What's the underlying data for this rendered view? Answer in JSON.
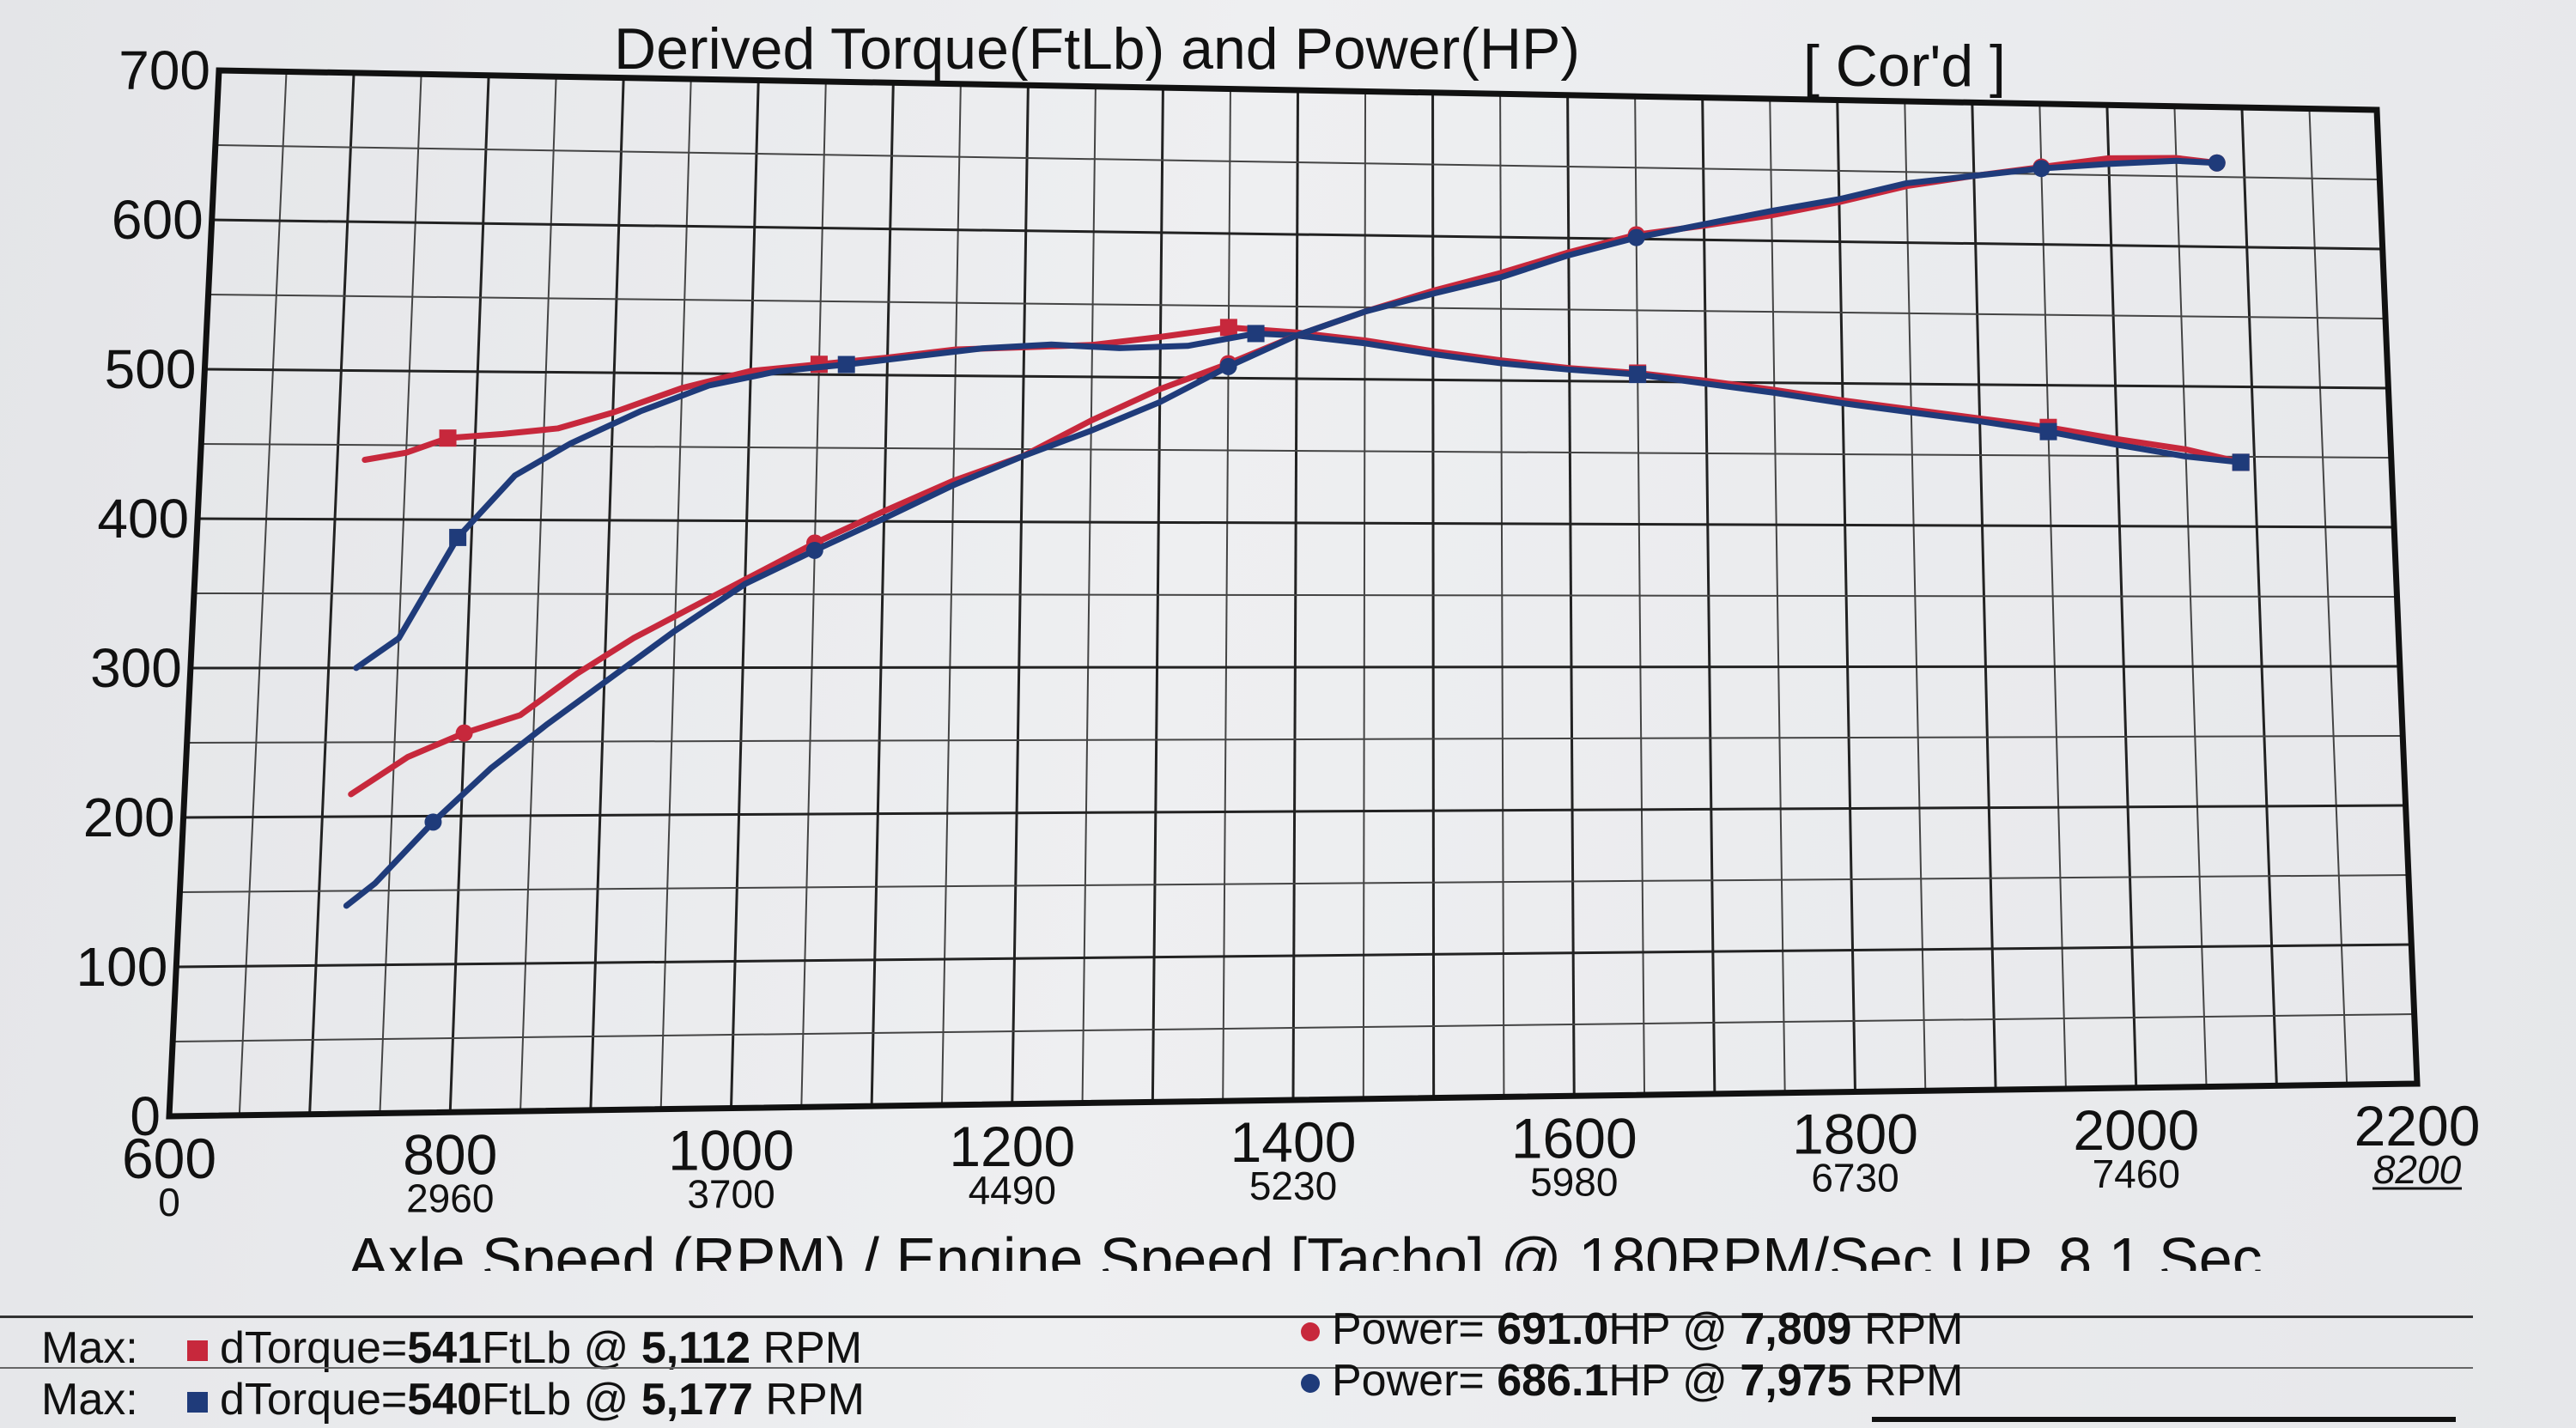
{
  "chart_data": {
    "type": "line",
    "title": "Derived Torque(FtLb) and Power(HP)",
    "title_tag": "[ Cor'd ]",
    "xlabel": "Axle Speed (RPM) / Engine Speed [Tacho] @ 180RPM/Sec UP, 8.1 Sec",
    "ylabel": "",
    "xlim": [
      600,
      2200
    ],
    "ylim": [
      0,
      700
    ],
    "y_ticks": [
      "0",
      "100",
      "200",
      "300",
      "400",
      "500",
      "600",
      "700"
    ],
    "x_ticks": [
      {
        "axle": "600",
        "engine": "0"
      },
      {
        "axle": "800",
        "engine": "2960"
      },
      {
        "axle": "1000",
        "engine": "3700"
      },
      {
        "axle": "1200",
        "engine": "4490"
      },
      {
        "axle": "1400",
        "engine": "5230"
      },
      {
        "axle": "1600",
        "engine": "5980"
      },
      {
        "axle": "1800",
        "engine": "6730"
      },
      {
        "axle": "2000",
        "engine": "7460"
      },
      {
        "axle": "2200",
        "engine": "8200"
      }
    ],
    "grid": true,
    "series": [
      {
        "color": "#c7283c",
        "marker": "square",
        "x": [
          720,
          750,
          780,
          820,
          860,
          900,
          950,
          1000,
          1050,
          1100,
          1150,
          1200,
          1250,
          1300,
          1350,
          1400,
          1450,
          1500,
          1550,
          1600,
          1650,
          1700,
          1750,
          1800,
          1850,
          1900,
          1950,
          2000,
          2050,
          2090
        ],
        "y": [
          440,
          445,
          455,
          458,
          462,
          473,
          490,
          502,
          507,
          512,
          518,
          520,
          522,
          528,
          535,
          532,
          527,
          520,
          514,
          509,
          506,
          501,
          495,
          488,
          482,
          476,
          470,
          462,
          455,
          446
        ]
      },
      {
        "color": "#1f3b7a",
        "marker": "square",
        "x": [
          720,
          750,
          790,
          830,
          870,
          920,
          970,
          1020,
          1070,
          1120,
          1170,
          1220,
          1270,
          1320,
          1370,
          1400,
          1450,
          1500,
          1550,
          1600,
          1650,
          1700,
          1750,
          1800,
          1850,
          1900,
          1950,
          2000,
          2050,
          2090
        ],
        "y": [
          300,
          320,
          388,
          430,
          452,
          474,
          492,
          502,
          507,
          513,
          519,
          522,
          520,
          522,
          531,
          530,
          525,
          518,
          512,
          508,
          505,
          499,
          493,
          486,
          480,
          474,
          467,
          458,
          450,
          446
        ]
      },
      {
        "color": "#c7283c",
        "marker": "circle",
        "x": [
          720,
          760,
          800,
          840,
          880,
          920,
          960,
          1000,
          1050,
          1100,
          1150,
          1200,
          1250,
          1300,
          1350,
          1400,
          1450,
          1500,
          1550,
          1600,
          1650,
          1700,
          1750,
          1800,
          1850,
          1900,
          1950,
          2000,
          2050,
          2080
        ],
        "y": [
          215,
          240,
          256,
          268,
          296,
          320,
          340,
          360,
          385,
          407,
          428,
          445,
          470,
          492,
          510,
          530,
          547,
          562,
          575,
          590,
          603,
          610,
          618,
          628,
          640,
          648,
          655,
          662,
          663,
          660
        ]
      },
      {
        "color": "#1f3b7a",
        "marker": "circle",
        "x": [
          720,
          740,
          780,
          820,
          860,
          900,
          950,
          1000,
          1050,
          1100,
          1150,
          1200,
          1250,
          1300,
          1350,
          1400,
          1450,
          1500,
          1550,
          1600,
          1650,
          1700,
          1750,
          1800,
          1850,
          1900,
          1950,
          2000,
          2050,
          2080
        ],
        "y": [
          140,
          155,
          196,
          232,
          262,
          290,
          325,
          357,
          380,
          402,
          425,
          445,
          463,
          483,
          508,
          530,
          547,
          560,
          572,
          588,
          601,
          611,
          621,
          630,
          642,
          648,
          654,
          658,
          661,
          660
        ]
      }
    ]
  },
  "summary": {
    "rows": [
      {
        "label": "Max:",
        "torque_name": "dTorque=",
        "torque_value": "541",
        "torque_unit": "FtLb @",
        "torque_rpm": "5,112",
        "torque_rpm_unit": "RPM",
        "power_name": "Power=",
        "power_value": "691.0",
        "power_unit": "HP @",
        "power_rpm": "7,809",
        "power_rpm_unit": "RPM"
      },
      {
        "label": "Max:",
        "torque_name": "dTorque=",
        "torque_value": "540",
        "torque_unit": "FtLb @",
        "torque_rpm": "5,177",
        "torque_rpm_unit": "RPM",
        "power_name": "Power=",
        "power_value": "686.1",
        "power_unit": "HP @",
        "power_rpm": "7,975",
        "power_rpm_unit": "RPM"
      }
    ],
    "colors": [
      "#c7283c",
      "#1f3b7a"
    ]
  }
}
